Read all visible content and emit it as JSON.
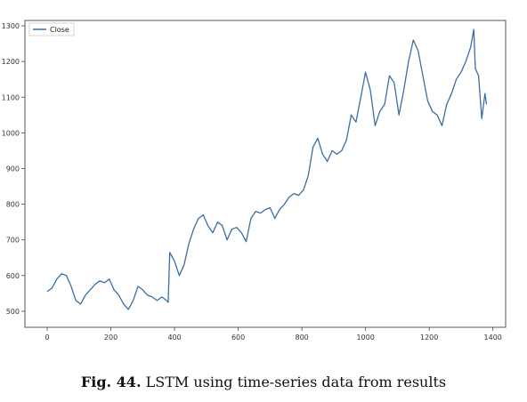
{
  "caption": {
    "label": "Fig. 44.",
    "text": "LSTM using time-series data from results"
  },
  "colors": {
    "line": "#3a6ea5",
    "axis": "#444444"
  },
  "chart_data": {
    "type": "line",
    "title": "",
    "xlabel": "",
    "ylabel": "",
    "xlim": [
      -70,
      1440
    ],
    "ylim": [
      455,
      1315
    ],
    "xticks": [
      0,
      200,
      400,
      600,
      800,
      1000,
      1200,
      1400
    ],
    "yticks": [
      500,
      600,
      700,
      800,
      900,
      1000,
      1100,
      1200,
      1300
    ],
    "legend": {
      "position": "top-left",
      "entries": [
        "Close"
      ]
    },
    "grid": false,
    "series": [
      {
        "name": "Close",
        "x": [
          0,
          15,
          30,
          45,
          60,
          75,
          90,
          105,
          120,
          135,
          150,
          165,
          180,
          195,
          210,
          225,
          240,
          255,
          270,
          285,
          300,
          315,
          330,
          345,
          360,
          375,
          380,
          385,
          400,
          415,
          430,
          445,
          460,
          475,
          490,
          505,
          520,
          535,
          550,
          565,
          580,
          595,
          610,
          625,
          640,
          655,
          670,
          685,
          700,
          715,
          730,
          745,
          760,
          775,
          790,
          805,
          820,
          835,
          850,
          865,
          880,
          895,
          910,
          925,
          940,
          955,
          970,
          985,
          1000,
          1015,
          1030,
          1045,
          1060,
          1075,
          1090,
          1105,
          1120,
          1135,
          1150,
          1165,
          1180,
          1195,
          1210,
          1225,
          1240,
          1255,
          1270,
          1285,
          1300,
          1315,
          1330,
          1340,
          1345,
          1355,
          1365,
          1375,
          1380
        ],
        "y": [
          555,
          565,
          590,
          605,
          600,
          570,
          530,
          520,
          545,
          560,
          575,
          585,
          580,
          590,
          560,
          545,
          520,
          505,
          530,
          570,
          560,
          545,
          540,
          530,
          540,
          530,
          525,
          665,
          640,
          600,
          630,
          690,
          730,
          760,
          770,
          740,
          720,
          750,
          740,
          700,
          730,
          735,
          720,
          695,
          760,
          780,
          775,
          785,
          790,
          760,
          785,
          800,
          820,
          830,
          825,
          840,
          880,
          960,
          985,
          940,
          920,
          950,
          940,
          950,
          980,
          1050,
          1030,
          1100,
          1170,
          1120,
          1020,
          1060,
          1080,
          1160,
          1140,
          1050,
          1120,
          1200,
          1260,
          1230,
          1160,
          1090,
          1060,
          1050,
          1020,
          1080,
          1110,
          1150,
          1170,
          1200,
          1240,
          1290,
          1180,
          1160,
          1040,
          1110,
          1080
        ]
      }
    ]
  }
}
